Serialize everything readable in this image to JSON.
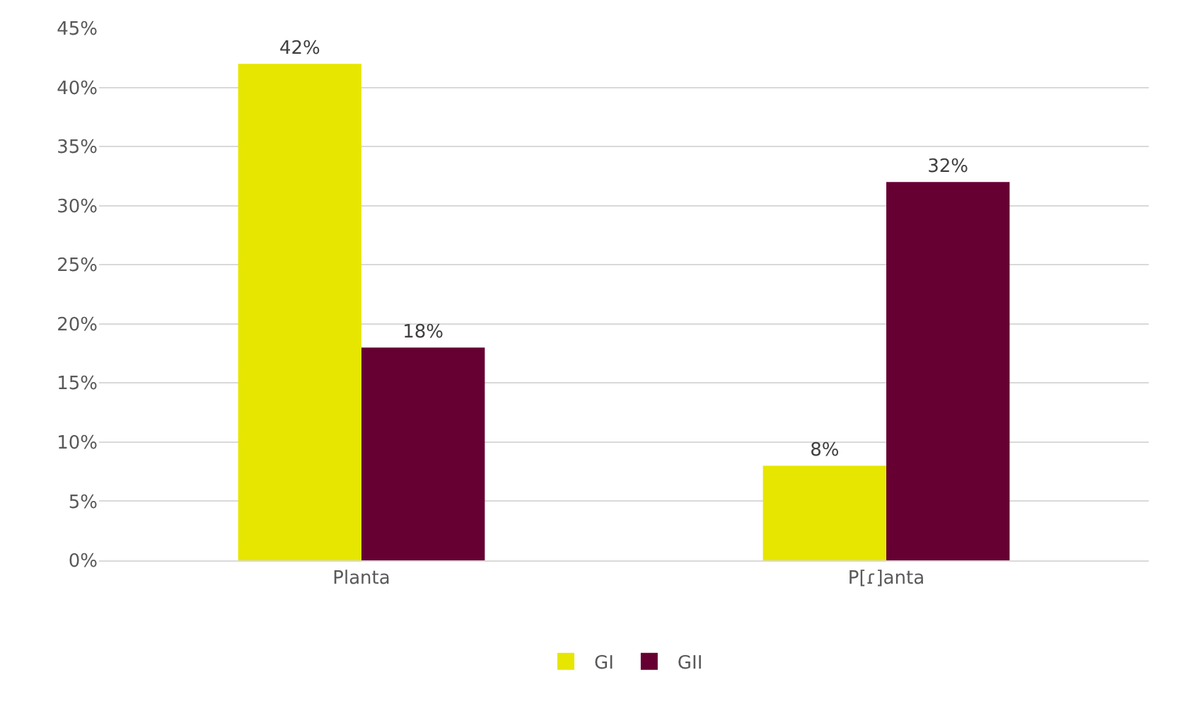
{
  "chart_data": {
    "type": "bar",
    "categories": [
      "Planta",
      "P[ɾ]anta"
    ],
    "series": [
      {
        "name": "GI",
        "color": "#e6e600",
        "values": [
          42,
          8
        ],
        "value_labels": [
          "42%",
          "8%"
        ]
      },
      {
        "name": "GII",
        "color": "#660033",
        "values": [
          18,
          32
        ],
        "value_labels": [
          "18%",
          "32%"
        ]
      }
    ],
    "ylim": [
      0,
      45
    ],
    "yticks": [
      {
        "value": 0,
        "label": "0%"
      },
      {
        "value": 5,
        "label": "5%"
      },
      {
        "value": 10,
        "label": "10%"
      },
      {
        "value": 15,
        "label": "15%"
      },
      {
        "value": 20,
        "label": "20%"
      },
      {
        "value": 25,
        "label": "25%"
      },
      {
        "value": 30,
        "label": "30%"
      },
      {
        "value": 35,
        "label": "35%"
      },
      {
        "value": 40,
        "label": "40%"
      },
      {
        "value": 45,
        "label": "45%"
      }
    ],
    "grid": "y",
    "legend": "bottom"
  }
}
